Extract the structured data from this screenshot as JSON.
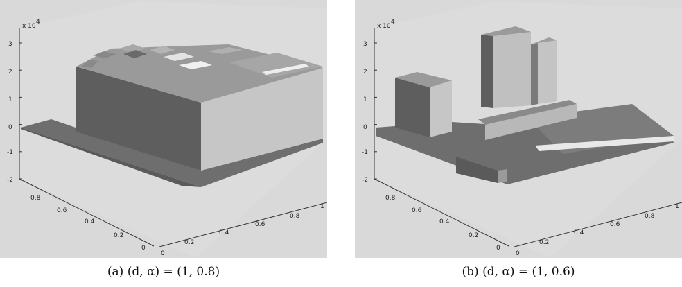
{
  "figure": {
    "caption_a": "(a) (d, α) = (1, 0.8)",
    "caption_b": "(b) (d, α) = (1, 0.6)"
  },
  "colors": {
    "background": "#d9d9d9",
    "top_face": "#9a9a9a",
    "front_face": "#5e5e5e",
    "side_face": "#c6c6c6",
    "floor": "#6e6e6e"
  },
  "chart_data": [
    {
      "type": "surface3d",
      "panel": "a",
      "caption": "(a) (d, α) = (1, 0.8)",
      "z_scale_label": "x 10",
      "z_scale_exp": "4",
      "z_ticks": [
        "3",
        "2",
        "1",
        "0",
        "-1",
        "-2"
      ],
      "z_values": [
        3,
        2,
        1,
        0,
        -1,
        -2
      ],
      "zlim": [
        -2,
        3
      ],
      "left_axis_ticks": [
        "0.8",
        "0.6",
        "0.4",
        "0.2",
        "0"
      ],
      "right_axis_ticks": [
        "0",
        "0.2",
        "0.4",
        "0.6",
        "0.8",
        "1"
      ],
      "surface": {
        "low_level": 0,
        "main_block_level": 2.5,
        "step_levels": [
          2.6,
          2.7,
          2.8
        ]
      }
    },
    {
      "type": "surface3d",
      "panel": "b",
      "caption": "(b) (d, α) = (1, 0.6)",
      "z_scale_label": "x 10",
      "z_scale_exp": "4",
      "z_ticks": [
        "3",
        "2",
        "1",
        "0",
        "-1",
        "-2"
      ],
      "z_values": [
        3,
        2,
        1,
        0,
        -1,
        -2
      ],
      "zlim": [
        -2,
        3
      ],
      "left_axis_ticks": [
        "0.8",
        "0.6",
        "0.4",
        "0.2",
        "0"
      ],
      "right_axis_ticks": [
        "0",
        "0.2",
        "0.4",
        "0.6",
        "0.8",
        "1"
      ],
      "surface": {
        "floor_level": 0,
        "small_block_level": 1.7,
        "tall_block_level": 3.0,
        "second_tall_block_level": 2.7,
        "ledge_level": 0.4,
        "dip_level": -1.6
      }
    }
  ]
}
